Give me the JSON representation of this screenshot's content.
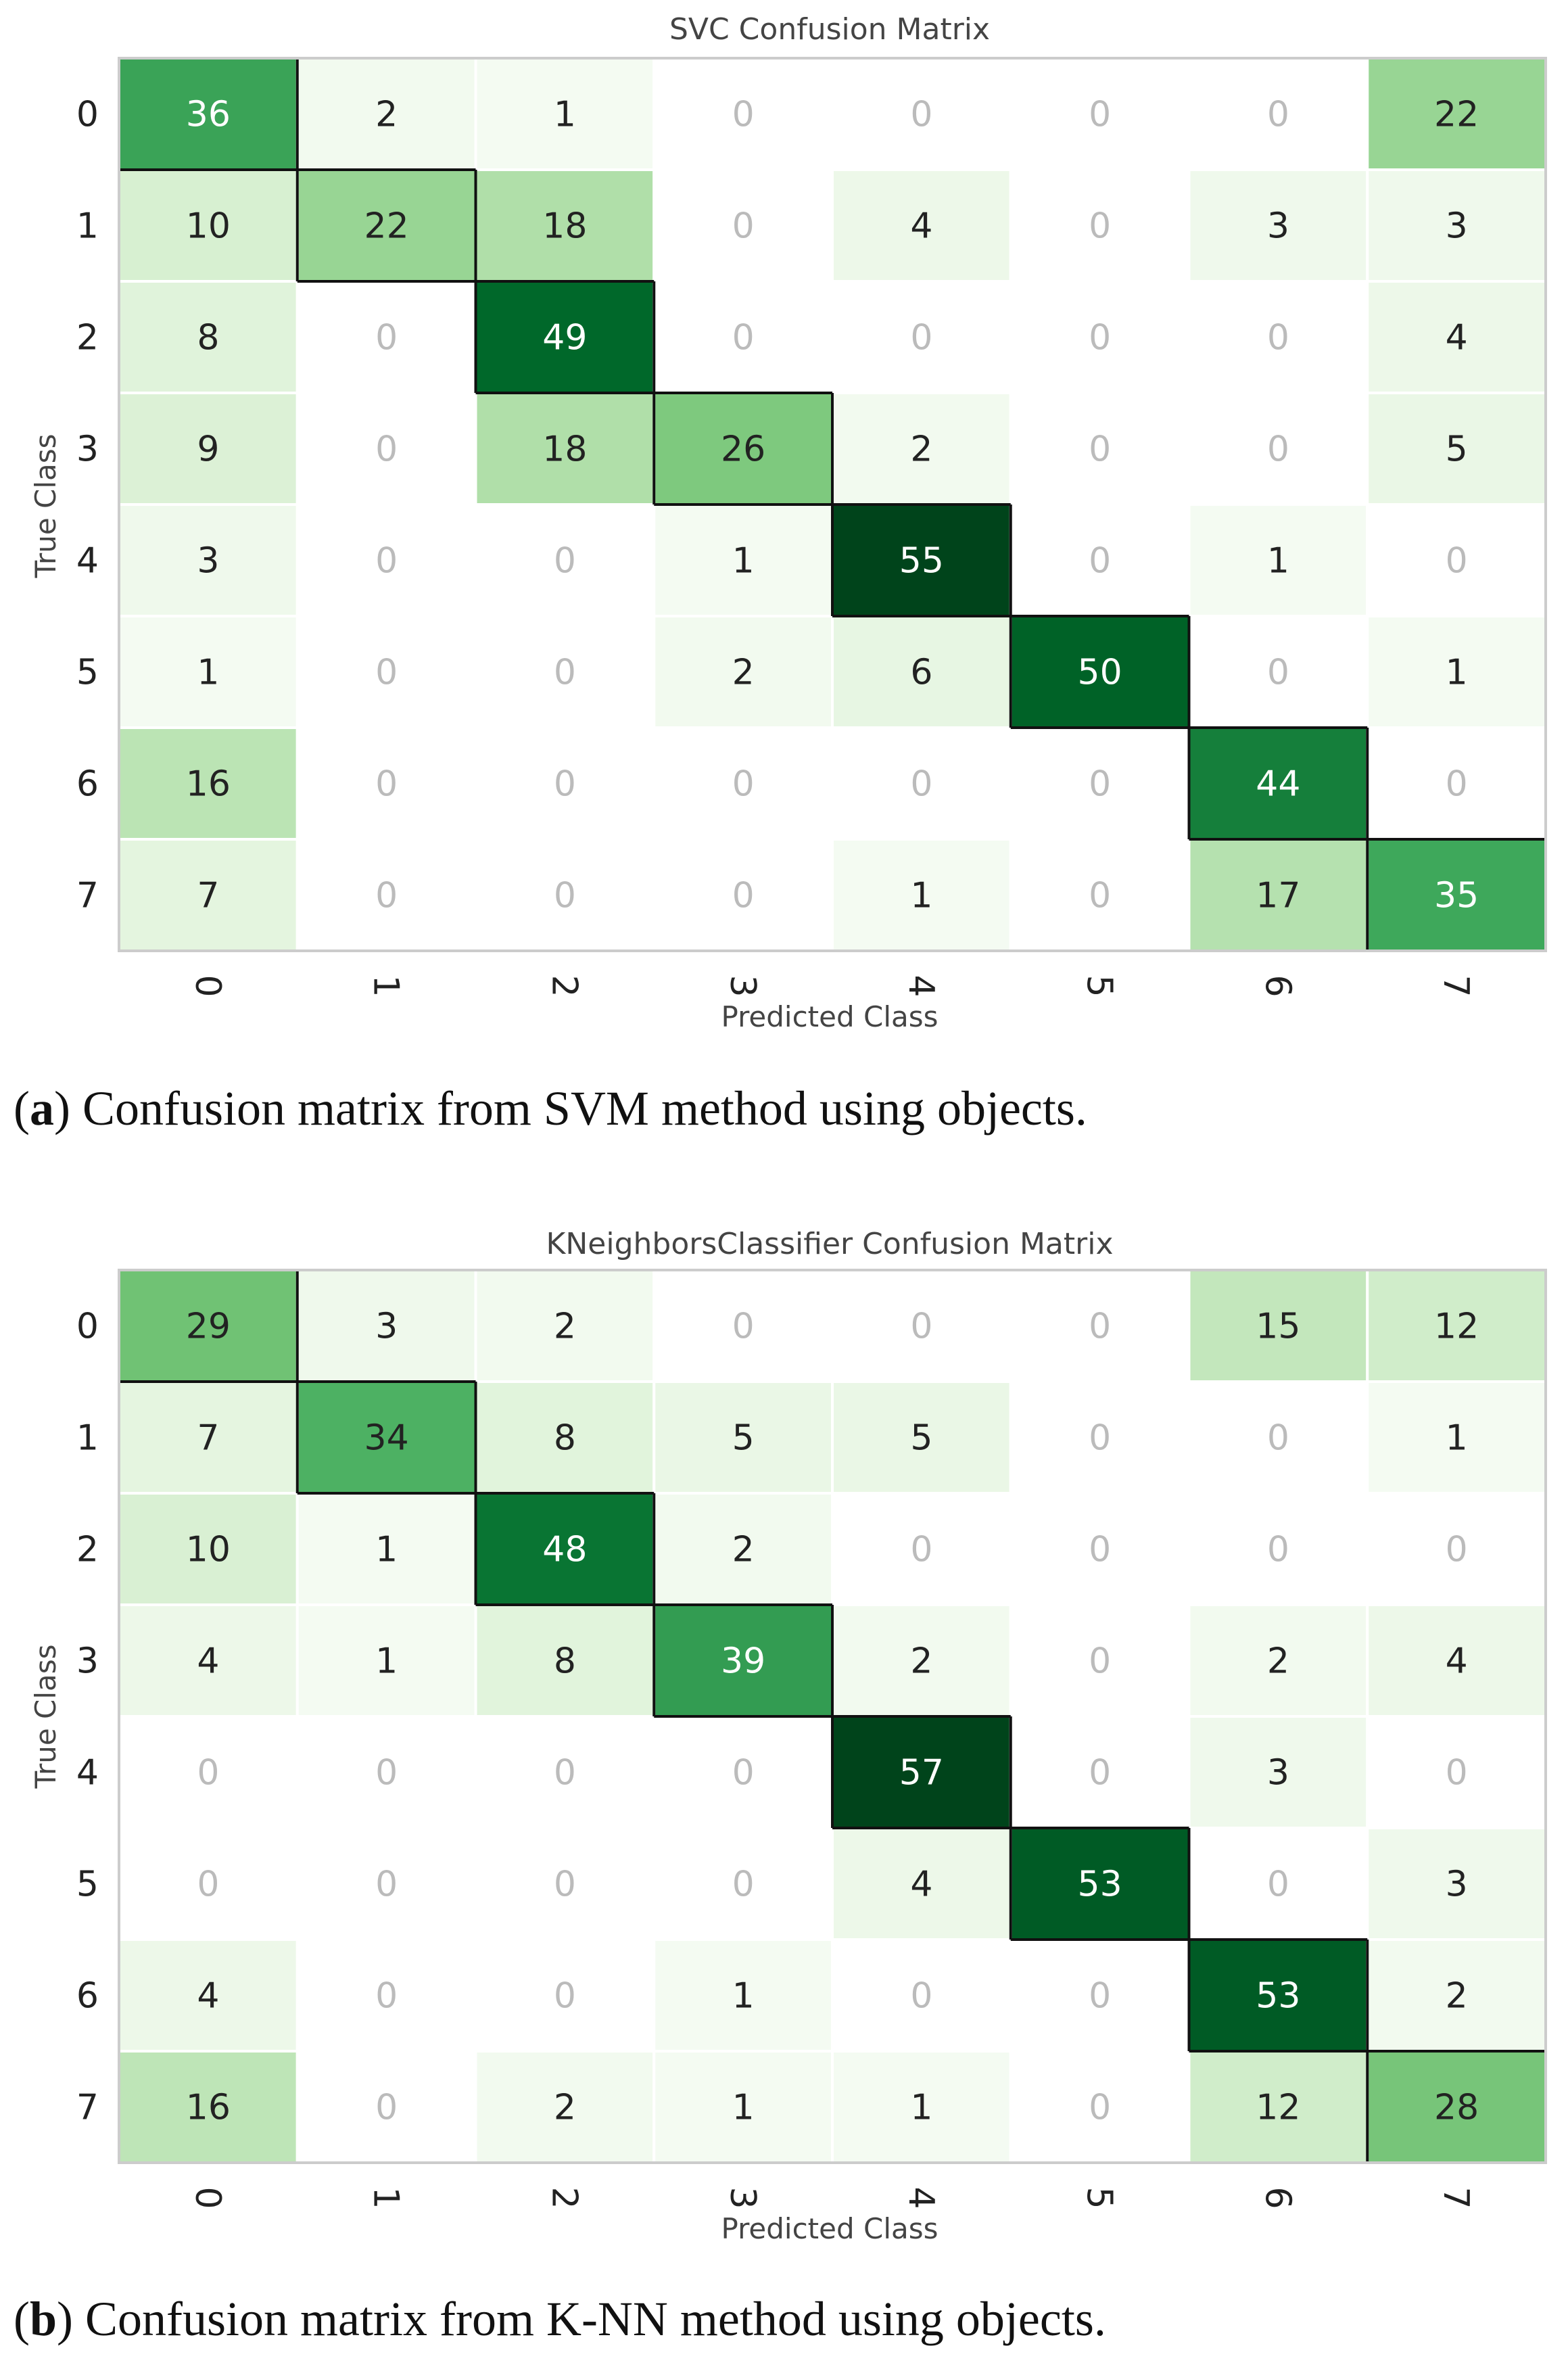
{
  "chart_data": [
    {
      "type": "heatmap",
      "title": "SVC Confusion Matrix",
      "xlabel": "Predicted Class",
      "ylabel": "True Class",
      "x_categories": [
        "0",
        "1",
        "2",
        "3",
        "4",
        "5",
        "6",
        "7"
      ],
      "y_categories": [
        "0",
        "1",
        "2",
        "3",
        "4",
        "5",
        "6",
        "7"
      ],
      "values": [
        [
          36,
          2,
          1,
          0,
          0,
          0,
          0,
          22
        ],
        [
          10,
          22,
          18,
          0,
          4,
          0,
          3,
          3
        ],
        [
          8,
          0,
          49,
          0,
          0,
          0,
          0,
          4
        ],
        [
          9,
          0,
          18,
          26,
          2,
          0,
          0,
          5
        ],
        [
          3,
          0,
          0,
          1,
          55,
          0,
          1,
          0
        ],
        [
          1,
          0,
          0,
          2,
          6,
          50,
          0,
          1
        ],
        [
          16,
          0,
          0,
          0,
          0,
          0,
          44,
          0
        ],
        [
          7,
          0,
          0,
          0,
          1,
          0,
          17,
          35
        ]
      ],
      "color_range": [
        0,
        55
      ],
      "caption": {
        "label": "a",
        "text": " Confusion matrix from SVM method using objects."
      }
    },
    {
      "type": "heatmap",
      "title": "KNeighborsClassifier Confusion Matrix",
      "xlabel": "Predicted Class",
      "ylabel": "True Class",
      "x_categories": [
        "0",
        "1",
        "2",
        "3",
        "4",
        "5",
        "6",
        "7"
      ],
      "y_categories": [
        "0",
        "1",
        "2",
        "3",
        "4",
        "5",
        "6",
        "7"
      ],
      "values": [
        [
          29,
          3,
          2,
          0,
          0,
          0,
          15,
          12
        ],
        [
          7,
          34,
          8,
          5,
          5,
          0,
          0,
          1
        ],
        [
          10,
          1,
          48,
          2,
          0,
          0,
          0,
          0
        ],
        [
          4,
          1,
          8,
          39,
          2,
          0,
          2,
          4
        ],
        [
          0,
          0,
          0,
          0,
          57,
          0,
          3,
          0
        ],
        [
          0,
          0,
          0,
          0,
          4,
          53,
          0,
          3
        ],
        [
          4,
          0,
          0,
          1,
          0,
          0,
          53,
          2
        ],
        [
          16,
          0,
          2,
          1,
          1,
          0,
          12,
          28
        ]
      ],
      "color_range": [
        0,
        57
      ],
      "caption": {
        "label": "b",
        "text": " Confusion matrix from K-NN method using objects."
      }
    }
  ],
  "colors": {
    "low": "#f7fcf5",
    "high": "#00441b",
    "grid": "#ffffff",
    "frame": "#cccccc",
    "diagonal_border": "#111111",
    "zero_text": "#bbbbbb",
    "dark_text": "#222222",
    "light_text": "#ffffff"
  }
}
